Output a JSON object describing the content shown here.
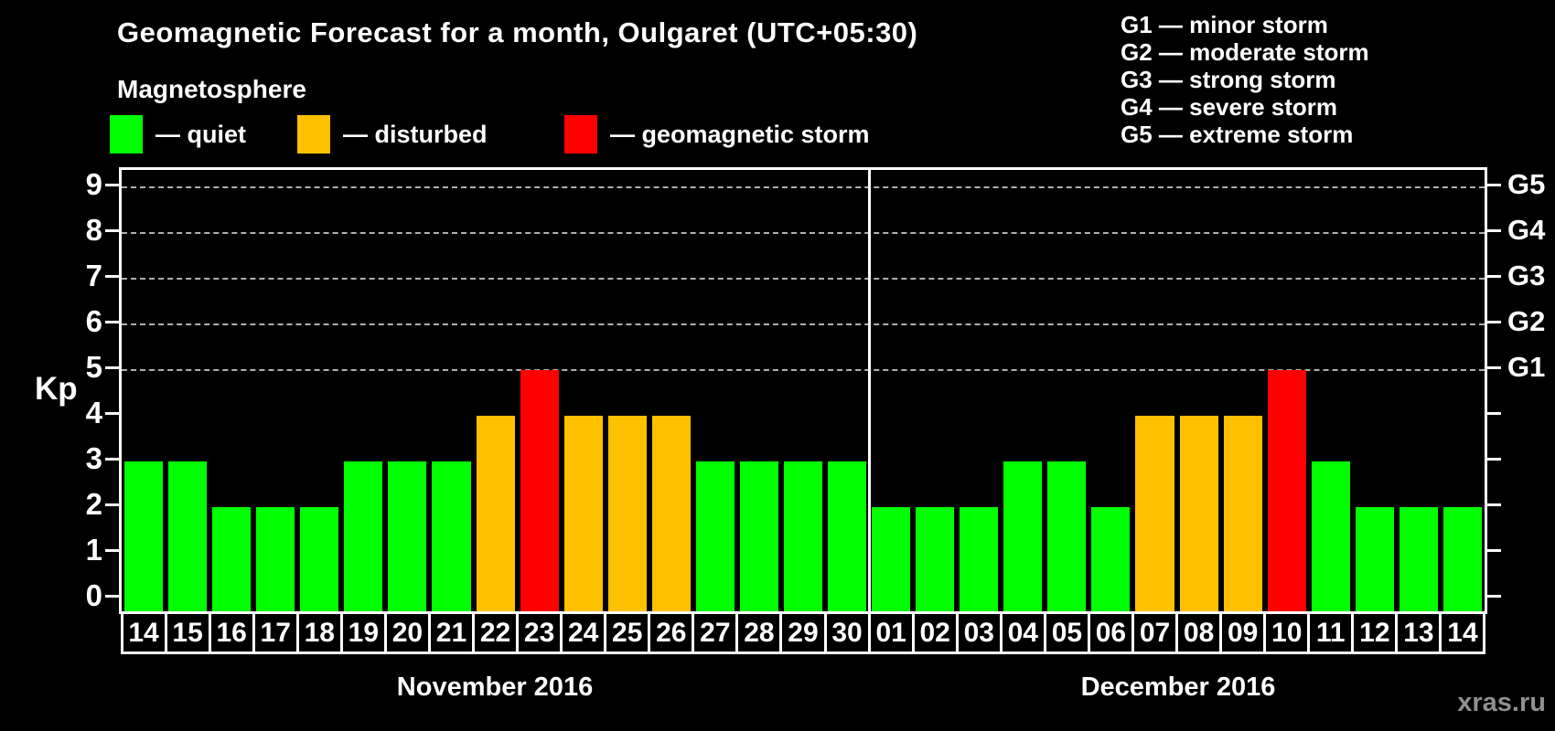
{
  "title": "Geomagnetic Forecast for a month, Oulgaret (UTC+05:30)",
  "watermark": "xras.ru",
  "legend": {
    "heading": "Magnetosphere",
    "items": [
      {
        "key": "quiet",
        "label": "— quiet",
        "color": "#00ff00"
      },
      {
        "key": "disturbed",
        "label": "— disturbed",
        "color": "#ffc000"
      },
      {
        "key": "storm",
        "label": "— geomagnetic storm",
        "color": "#ff0000"
      }
    ]
  },
  "storm_legend": [
    "G1 — minor storm",
    "G2 — moderate storm",
    "G3 — strong storm",
    "G4 — severe storm",
    "G5 — extreme storm"
  ],
  "chart_data": {
    "type": "bar",
    "ylabel": "Kp",
    "ylim": [
      0,
      9
    ],
    "yticks": [
      0,
      1,
      2,
      3,
      4,
      5,
      6,
      7,
      8,
      9
    ],
    "gridline_levels": [
      5,
      6,
      7,
      8,
      9
    ],
    "grid": "dashed horizontal lines at storm levels only",
    "legend_position": "top",
    "right_axis": [
      {
        "level": 5,
        "label": "G1"
      },
      {
        "level": 6,
        "label": "G2"
      },
      {
        "level": 7,
        "label": "G3"
      },
      {
        "level": 8,
        "label": "G4"
      },
      {
        "level": 9,
        "label": "G5"
      }
    ],
    "status_colors": {
      "quiet": "#00ff00",
      "disturbed": "#ffc000",
      "storm": "#ff0000"
    },
    "months": [
      {
        "label": "November 2016",
        "days": [
          {
            "day": "14",
            "kp": 3,
            "status": "quiet"
          },
          {
            "day": "15",
            "kp": 3,
            "status": "quiet"
          },
          {
            "day": "16",
            "kp": 2,
            "status": "quiet"
          },
          {
            "day": "17",
            "kp": 2,
            "status": "quiet"
          },
          {
            "day": "18",
            "kp": 2,
            "status": "quiet"
          },
          {
            "day": "19",
            "kp": 3,
            "status": "quiet"
          },
          {
            "day": "20",
            "kp": 3,
            "status": "quiet"
          },
          {
            "day": "21",
            "kp": 3,
            "status": "quiet"
          },
          {
            "day": "22",
            "kp": 4,
            "status": "disturbed"
          },
          {
            "day": "23",
            "kp": 5,
            "status": "storm"
          },
          {
            "day": "24",
            "kp": 4,
            "status": "disturbed"
          },
          {
            "day": "25",
            "kp": 4,
            "status": "disturbed"
          },
          {
            "day": "26",
            "kp": 4,
            "status": "disturbed"
          },
          {
            "day": "27",
            "kp": 3,
            "status": "quiet"
          },
          {
            "day": "28",
            "kp": 3,
            "status": "quiet"
          },
          {
            "day": "29",
            "kp": 3,
            "status": "quiet"
          },
          {
            "day": "30",
            "kp": 3,
            "status": "quiet"
          }
        ]
      },
      {
        "label": "December 2016",
        "days": [
          {
            "day": "01",
            "kp": 2,
            "status": "quiet"
          },
          {
            "day": "02",
            "kp": 2,
            "status": "quiet"
          },
          {
            "day": "03",
            "kp": 2,
            "status": "quiet"
          },
          {
            "day": "04",
            "kp": 3,
            "status": "quiet"
          },
          {
            "day": "05",
            "kp": 3,
            "status": "quiet"
          },
          {
            "day": "06",
            "kp": 2,
            "status": "quiet"
          },
          {
            "day": "07",
            "kp": 4,
            "status": "disturbed"
          },
          {
            "day": "08",
            "kp": 4,
            "status": "disturbed"
          },
          {
            "day": "09",
            "kp": 4,
            "status": "disturbed"
          },
          {
            "day": "10",
            "kp": 5,
            "status": "storm"
          },
          {
            "day": "11",
            "kp": 3,
            "status": "quiet"
          },
          {
            "day": "12",
            "kp": 2,
            "status": "quiet"
          },
          {
            "day": "13",
            "kp": 2,
            "status": "quiet"
          },
          {
            "day": "14",
            "kp": 2,
            "status": "quiet"
          }
        ]
      }
    ]
  }
}
